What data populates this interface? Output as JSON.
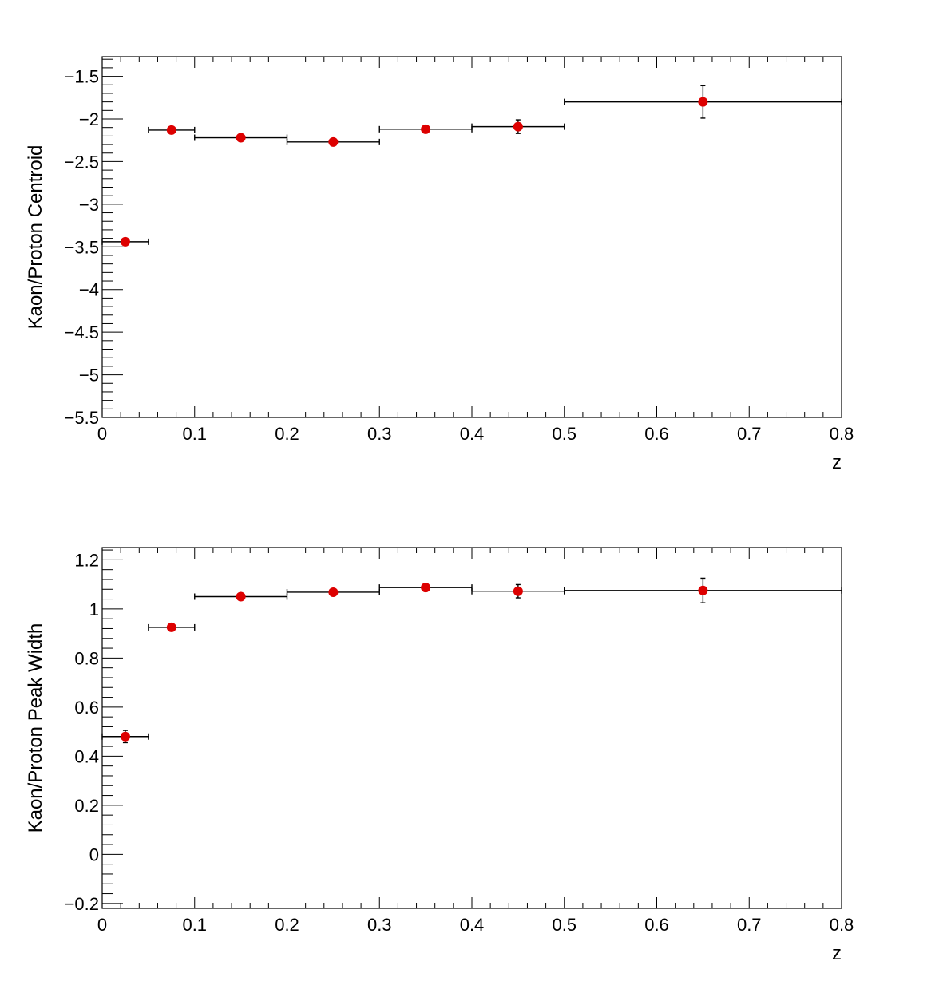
{
  "chart_data": [
    {
      "type": "scatter",
      "title": "",
      "xlabel": "z",
      "ylabel": "Kaon/Proton Centroid",
      "xlim": [
        0,
        0.8
      ],
      "ylim": [
        -5.5,
        -1.27
      ],
      "xticks": [
        0,
        0.1,
        0.2,
        0.3,
        0.4,
        0.5,
        0.6,
        0.7,
        0.8
      ],
      "xtick_labels": [
        "0",
        "0.1",
        "0.2",
        "0.3",
        "0.4",
        "0.5",
        "0.6",
        "0.7",
        "0.8"
      ],
      "yticks": [
        -5.5,
        -5,
        -4.5,
        -4,
        -3.5,
        -3,
        -2.5,
        -2,
        -1.5
      ],
      "ytick_labels": [
        "−5.5",
        "−5",
        "−4.5",
        "−4",
        "−3.5",
        "−3",
        "−2.5",
        "−2",
        "−1.5"
      ],
      "grid": false,
      "marker_color": "#dd0000",
      "points": [
        {
          "x": 0.025,
          "y": -3.44,
          "xerr": 0.025,
          "yerr": 0.0
        },
        {
          "x": 0.075,
          "y": -2.13,
          "xerr": 0.025,
          "yerr": 0.0
        },
        {
          "x": 0.15,
          "y": -2.22,
          "xerr": 0.05,
          "yerr": 0.0
        },
        {
          "x": 0.25,
          "y": -2.27,
          "xerr": 0.05,
          "yerr": 0.0
        },
        {
          "x": 0.35,
          "y": -2.12,
          "xerr": 0.05,
          "yerr": 0.02
        },
        {
          "x": 0.45,
          "y": -2.09,
          "xerr": 0.05,
          "yerr": 0.08
        },
        {
          "x": 0.65,
          "y": -1.8,
          "xerr": 0.15,
          "yerr": 0.19
        }
      ]
    },
    {
      "type": "scatter",
      "title": "",
      "xlabel": "z",
      "ylabel": "Kaon/Proton Peak Width",
      "xlim": [
        0,
        0.8
      ],
      "ylim": [
        -0.22,
        1.25
      ],
      "xticks": [
        0,
        0.1,
        0.2,
        0.3,
        0.4,
        0.5,
        0.6,
        0.7,
        0.8
      ],
      "xtick_labels": [
        "0",
        "0.1",
        "0.2",
        "0.3",
        "0.4",
        "0.5",
        "0.6",
        "0.7",
        "0.8"
      ],
      "yticks": [
        -0.2,
        0,
        0.2,
        0.4,
        0.6,
        0.8,
        1,
        1.2
      ],
      "ytick_labels": [
        "−0.2",
        "0",
        "0.2",
        "0.4",
        "0.6",
        "0.8",
        "1",
        "1.2"
      ],
      "grid": false,
      "marker_color": "#dd0000",
      "points": [
        {
          "x": 0.025,
          "y": 0.48,
          "xerr": 0.025,
          "yerr": 0.025
        },
        {
          "x": 0.075,
          "y": 0.925,
          "xerr": 0.025,
          "yerr": 0.0
        },
        {
          "x": 0.15,
          "y": 1.05,
          "xerr": 0.05,
          "yerr": 0.0
        },
        {
          "x": 0.25,
          "y": 1.068,
          "xerr": 0.05,
          "yerr": 0.0
        },
        {
          "x": 0.35,
          "y": 1.087,
          "xerr": 0.05,
          "yerr": 0.005
        },
        {
          "x": 0.45,
          "y": 1.072,
          "xerr": 0.05,
          "yerr": 0.027
        },
        {
          "x": 0.65,
          "y": 1.075,
          "xerr": 0.15,
          "yerr": 0.05
        }
      ]
    }
  ]
}
